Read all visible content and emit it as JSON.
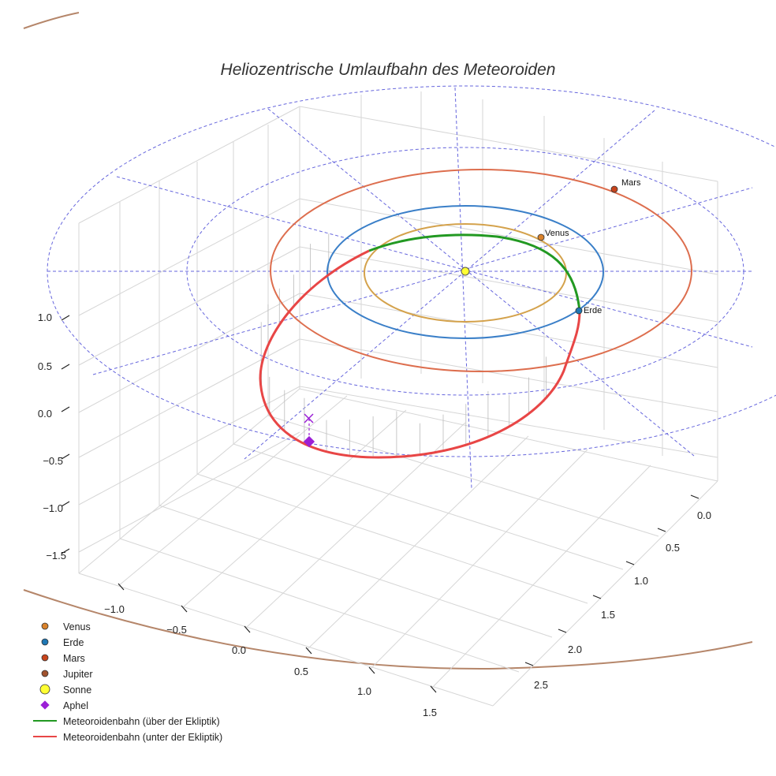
{
  "chart_data": {
    "type": "line",
    "projection": "3d",
    "title": "Heliozentrische Umlaufbahn des Meteoroiden",
    "xlabel": "",
    "ylabel": "",
    "zlabel": "",
    "x_ticks": [
      "−1.0",
      "−0.5",
      "0.0",
      "0.5",
      "1.0",
      "1.5"
    ],
    "y_ticks": [
      "0.0",
      "0.5",
      "1.0",
      "1.5",
      "2.0",
      "2.5"
    ],
    "z_ticks": [
      "1.0",
      "0.5",
      "0.0",
      "−0.5",
      "−1.0",
      "−1.5"
    ],
    "xlim": [
      -1.2,
      1.8
    ],
    "ylim": [
      -0.25,
      2.75
    ],
    "zlim": [
      -1.7,
      1.2
    ],
    "grid": true,
    "legend_position": "bottom-left",
    "planets": [
      {
        "name": "Venus",
        "label": "Venus",
        "orbit_radius": 0.723,
        "color": "#d4a24c",
        "marker_color": "#d9822b"
      },
      {
        "name": "Erde",
        "label": "Erde",
        "orbit_radius": 1.0,
        "color": "#3a7fc8",
        "marker_color": "#1f77b4"
      },
      {
        "name": "Mars",
        "label": "Mars",
        "orbit_radius": 1.524,
        "color": "#dd6e4e",
        "marker_color": "#c8441c"
      },
      {
        "name": "Jupiter",
        "label": "",
        "orbit_radius": 5.2,
        "color": "#b5866a",
        "marker_color": "#a0522d"
      }
    ],
    "sun": {
      "name": "Sonne",
      "x": 0,
      "y": 0,
      "z": 0,
      "color": "#ffff33"
    },
    "aphelion": {
      "name": "Aphel",
      "color": "#9b1fd6"
    },
    "series": [
      {
        "name": "Meteoroidenbahn (über der Ekliptik)",
        "color": "#229922"
      },
      {
        "name": "Meteoroidenbahn (unter der Ekliptik)",
        "color": "#e84646"
      }
    ],
    "legend": [
      {
        "label": "Venus",
        "marker": "circle",
        "color": "#d9822b"
      },
      {
        "label": "Erde",
        "marker": "circle",
        "color": "#1f77b4"
      },
      {
        "label": "Mars",
        "marker": "circle",
        "color": "#c8441c"
      },
      {
        "label": "Jupiter",
        "marker": "circle",
        "color": "#a0522d"
      },
      {
        "label": "Sonne",
        "marker": "big-circle",
        "color": "#ffff33"
      },
      {
        "label": "Aphel",
        "marker": "diamond",
        "color": "#9b1fd6"
      },
      {
        "label": "Meteoroidenbahn (über der Ekliptik)",
        "marker": "line",
        "color": "#229922"
      },
      {
        "label": "Meteoroidenbahn (unter der Ekliptik)",
        "marker": "line",
        "color": "#e84646"
      }
    ]
  }
}
